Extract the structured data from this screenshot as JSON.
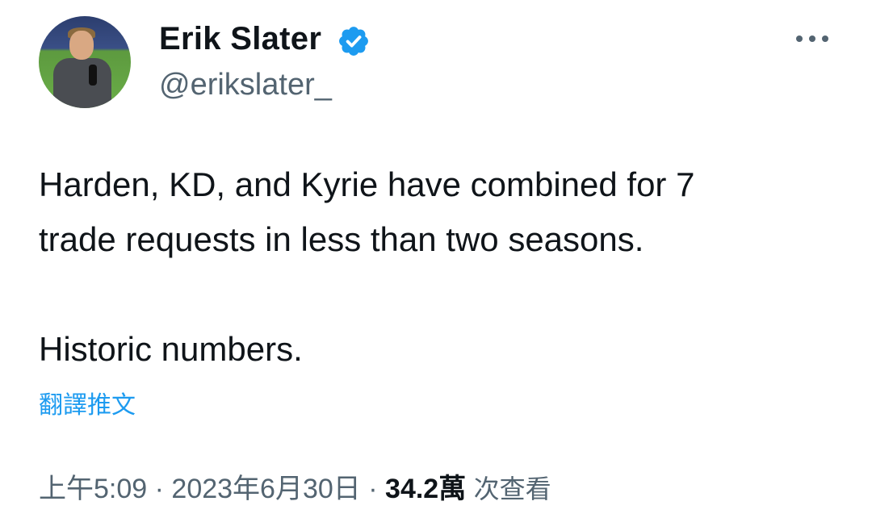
{
  "author": {
    "name": "Erik Slater",
    "handle": "@erikslater_",
    "verified": true,
    "badge_color": "#1d9bf0"
  },
  "menu_icon": "more-horizontal-icon",
  "tweet": {
    "text": "Harden, KD, and Kyrie have combined for 7\ntrade requests in less than two seasons.\n\nHistoric numbers.",
    "translate_label": "翻譯推文"
  },
  "meta": {
    "time": "上午5:09",
    "separator": "·",
    "date": "2023年6月30日",
    "views_count": "34.2萬",
    "views_label": "次查看"
  }
}
